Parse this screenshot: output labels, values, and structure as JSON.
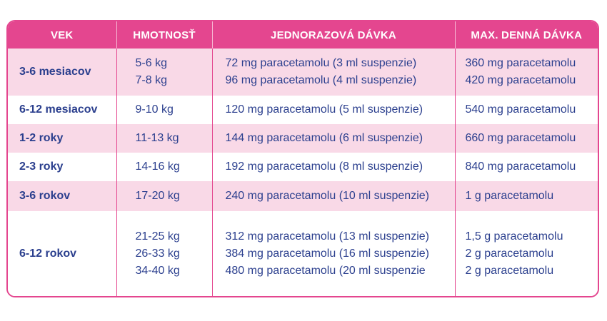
{
  "headers": [
    "VEK",
    "HMOTNOSŤ",
    "JEDNORAZOVÁ DÁVKA",
    "MAX. DENNÁ DÁVKA"
  ],
  "rows": [
    {
      "age": "3-6 mesiacov",
      "weights": [
        "5-6 kg",
        "7-8 kg"
      ],
      "doses": [
        "72 mg paracetamolu (3 ml suspenzie)",
        "96 mg paracetamolu (4 ml suspenzie)"
      ],
      "max": [
        "360 mg paracetamolu",
        "420 mg paracetamolu"
      ]
    },
    {
      "age": "6-12 mesiacov",
      "weights": [
        "9-10 kg"
      ],
      "doses": [
        "120 mg paracetamolu (5 ml suspenzie)"
      ],
      "max": [
        "540 mg paracetamolu"
      ]
    },
    {
      "age": "1-2 roky",
      "weights": [
        "11-13 kg"
      ],
      "doses": [
        "144 mg paracetamolu (6 ml suspenzie)"
      ],
      "max": [
        "660 mg paracetamolu"
      ]
    },
    {
      "age": "2-3 roky",
      "weights": [
        "14-16 kg"
      ],
      "doses": [
        "192 mg paracetamolu (8 ml suspenzie)"
      ],
      "max": [
        "840 mg paracetamolu"
      ]
    },
    {
      "age": "3-6 rokov",
      "weights": [
        "17-20 kg"
      ],
      "doses": [
        "240 mg paracetamolu (10 ml suspenzie)"
      ],
      "max": [
        "1 g paracetamolu"
      ]
    },
    {
      "age": "6-12 rokov",
      "weights": [
        "21-25 kg",
        "26-33 kg",
        "34-40 kg"
      ],
      "doses": [
        "312 mg paracetamolu (13 ml suspenzie)",
        "384 mg paracetamolu (16 ml suspenzie)",
        "480 mg paracetamolu (20 ml suspenzie"
      ],
      "max": [
        "1,5 g paracetamolu",
        "2 g paracetamolu",
        "2 g paracetamolu"
      ]
    }
  ],
  "colors": {
    "accent": "#e4468f",
    "row_tint": "#f9d9e7",
    "text": "#2b3f8e"
  }
}
